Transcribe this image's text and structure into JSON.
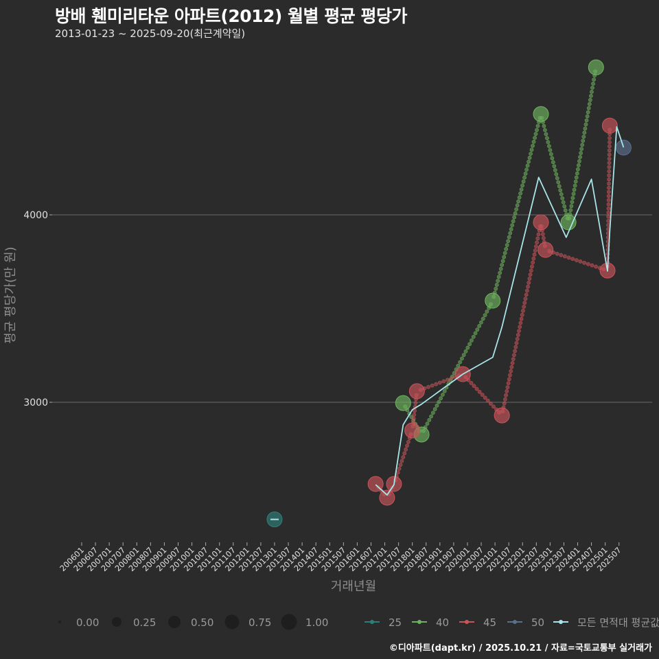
{
  "header": {
    "title": "방배 휀미리타운 아파트(2012) 월별 평균 평당가",
    "subtitle": "2013-01-23 ~ 2025-09-20(최근계약일)"
  },
  "footer": {
    "credit": "©디아파트(dapt.kr) / 2025.10.21 / 자료=국토교통부 실거래가"
  },
  "colors": {
    "background": "#2b2b2b",
    "grid": "#6b6b6b",
    "s25": "#2e7f7a",
    "s40": "#6fb35f",
    "s45": "#c9545a",
    "s50": "#5c6f8f",
    "avg": "#a8e6ea"
  },
  "chart_data": {
    "type": "scatter",
    "title": "방배 휀미리타운 아파트(2012) 월별 평균 평당가",
    "subtitle": "2013-01-23 ~ 2025-09-20(최근계약일)",
    "xlabel": "거래년월",
    "ylabel": "평균 평당가(만 원)",
    "yticks": [
      3000,
      4000
    ],
    "grid": true,
    "xticks": [
      "200601",
      "200607",
      "200701",
      "200707",
      "200801",
      "200807",
      "200901",
      "200907",
      "201001",
      "201007",
      "201101",
      "201107",
      "201201",
      "201207",
      "201301",
      "201307",
      "201401",
      "201407",
      "201501",
      "201507",
      "201601",
      "201607",
      "201701",
      "201707",
      "201801",
      "201807",
      "201901",
      "201907",
      "202001",
      "202007",
      "202101",
      "202107",
      "202201",
      "202207",
      "202301",
      "202307",
      "202401",
      "202407",
      "202501",
      "202507"
    ],
    "size_legend": [
      "0.00",
      "0.25",
      "0.50",
      "0.75",
      "1.00"
    ],
    "legend": [
      "25",
      "40",
      "45",
      "50",
      "모든 면적대 평균값"
    ],
    "series": [
      {
        "name": "25",
        "points": [
          {
            "x": "201301",
            "y": 2375
          }
        ]
      },
      {
        "name": "40",
        "points": [
          {
            "x": "201709",
            "y": 2996
          },
          {
            "x": "201805",
            "y": 2828
          },
          {
            "x": "202012",
            "y": 3542
          },
          {
            "x": "202209",
            "y": 4538
          },
          {
            "x": "202309",
            "y": 3960
          },
          {
            "x": "202409",
            "y": 4787
          }
        ]
      },
      {
        "name": "45",
        "points": [
          {
            "x": "201609",
            "y": 2564
          },
          {
            "x": "201702",
            "y": 2491
          },
          {
            "x": "201705",
            "y": 2564
          },
          {
            "x": "201801",
            "y": 2850
          },
          {
            "x": "201803",
            "y": 3059
          },
          {
            "x": "201911",
            "y": 3150
          },
          {
            "x": "202104",
            "y": 2930
          },
          {
            "x": "202209",
            "y": 3960
          },
          {
            "x": "202211",
            "y": 3813
          },
          {
            "x": "202502",
            "y": 3703
          },
          {
            "x": "202503",
            "y": 4476
          }
        ]
      },
      {
        "name": "50",
        "points": [
          {
            "x": "202509",
            "y": 4359
          }
        ]
      },
      {
        "name": "모든 면적대 평균값",
        "points": [
          {
            "x": "201609",
            "y": 2560
          },
          {
            "x": "201702",
            "y": 2505
          },
          {
            "x": "201705",
            "y": 2560
          },
          {
            "x": "201709",
            "y": 2880
          },
          {
            "x": "201801",
            "y": 2960
          },
          {
            "x": "201805",
            "y": 2990
          },
          {
            "x": "201911",
            "y": 3150
          },
          {
            "x": "202012",
            "y": 3240
          },
          {
            "x": "202104",
            "y": 3400
          },
          {
            "x": "202208",
            "y": 4200
          },
          {
            "x": "202308",
            "y": 3880
          },
          {
            "x": "202407",
            "y": 4190
          },
          {
            "x": "202502",
            "y": 3700
          },
          {
            "x": "202503",
            "y": 3920
          },
          {
            "x": "202506",
            "y": 4470
          },
          {
            "x": "202509",
            "y": 4360
          }
        ]
      }
    ]
  }
}
